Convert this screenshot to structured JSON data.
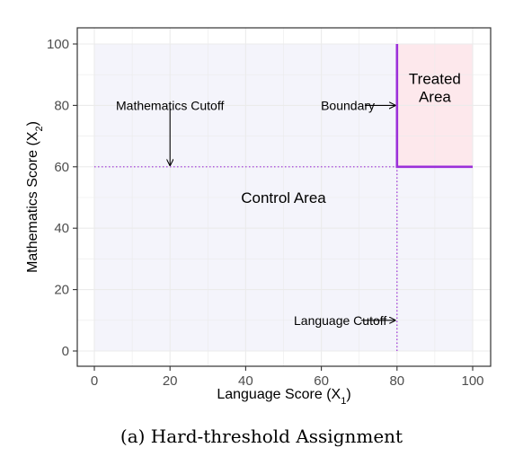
{
  "caption": "(a) Hard-threshold Assignment",
  "chart_data": {
    "type": "area",
    "xlabel": "Language Score (X",
    "xlabel_sub": "1",
    "ylabel": "Mathematics Score (X",
    "ylabel_sub": "2",
    "xlim": [
      0,
      100
    ],
    "ylim": [
      0,
      100
    ],
    "xticks": [
      0,
      20,
      40,
      60,
      80,
      100
    ],
    "yticks": [
      0,
      20,
      40,
      60,
      80,
      100
    ],
    "grid": true,
    "language_cutoff": 80,
    "mathematics_cutoff": 60,
    "regions": [
      {
        "label": "Control Area",
        "x": [
          0,
          100
        ],
        "y": [
          0,
          100
        ],
        "label_at": [
          50,
          50
        ],
        "color": "#f4f4fb"
      },
      {
        "label": "Treated Area",
        "lines": [
          "Treated",
          "Area"
        ],
        "x": [
          80,
          100
        ],
        "y": [
          60,
          100
        ],
        "label_at": [
          90,
          87
        ],
        "color": "#fde8ec"
      }
    ],
    "boundary": {
      "points": [
        [
          80,
          100
        ],
        [
          80,
          60
        ],
        [
          100,
          60
        ]
      ],
      "color": "#9b30d9"
    },
    "cutoff_lines": [
      {
        "orientation": "horizontal",
        "value": 60,
        "from": 0,
        "to": 80,
        "style": "dotted",
        "color": "#9b30d9"
      },
      {
        "orientation": "vertical",
        "value": 80,
        "from": 0,
        "to": 60,
        "style": "dotted",
        "color": "#9b30d9"
      }
    ],
    "annotations": [
      {
        "text": "Mathematics Cutoff",
        "text_at": [
          20,
          80
        ],
        "arrow_from": [
          20,
          79
        ],
        "arrow_to": [
          20,
          60.5
        ]
      },
      {
        "text": "Boundary",
        "text_at": [
          67,
          80
        ],
        "arrow_from": [
          71.5,
          80
        ],
        "arrow_to": [
          79.5,
          80
        ]
      },
      {
        "text": "Language Cutoff",
        "text_at": [
          65,
          10
        ],
        "arrow_from": [
          70.5,
          10
        ],
        "arrow_to": [
          79.5,
          10
        ]
      }
    ],
    "colors": {
      "panel_background": "#ffffff",
      "grid": "#ebebeb",
      "axis": "#333333",
      "arrow": "#000000"
    }
  }
}
